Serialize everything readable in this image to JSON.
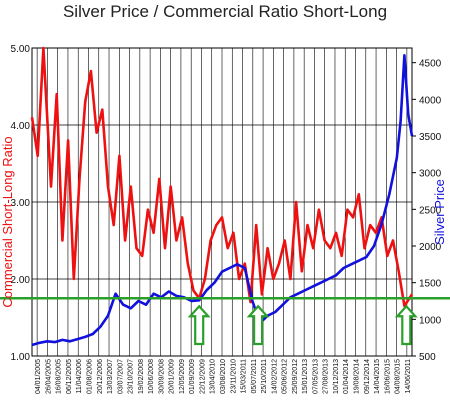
{
  "chart_data": {
    "type": "line",
    "title": "Silver Price / Commercial Ratio Short-Long",
    "y_left_label": "Commercial Short-Long Ratio",
    "y_right_label": "Silver Price",
    "y_left_range": [
      1.0,
      5.0
    ],
    "y_right_range": [
      500,
      4700
    ],
    "y_left_ticks": [
      "1.00",
      "2.00",
      "3.00",
      "4.00",
      "5.00"
    ],
    "y_right_ticks": [
      "500",
      "1000",
      "1500",
      "2000",
      "2500",
      "3000",
      "3500",
      "4000",
      "4500"
    ],
    "x_tick_labels": [
      "04/01/2005",
      "26/04/2005",
      "16/08/2005",
      "06/12/2005",
      "11/04/2006",
      "01/08/2006",
      "20/12/2006",
      "13/03/2007",
      "03/07/2007",
      "23/10/2007",
      "19/02/2008",
      "10/06/2008",
      "30/09/2008",
      "20/01/2009",
      "12/05/2009",
      "01/09/2009",
      "22/12/2009",
      "13/04/2010",
      "03/08/2010",
      "23/11/2010",
      "15/03/2011",
      "05/07/2011",
      "25/10/2011",
      "14/02/2012",
      "05/06/2012",
      "25/09/2012",
      "15/01/2013",
      "07/05/2013",
      "27/08/2013",
      "10/12/2013",
      "01/04/2014",
      "19/08/2014",
      "09/12/2014",
      "14/04/2015",
      "16/06/2015",
      "04/08/2015",
      "14/06/2011"
    ],
    "grid": true,
    "reference_line": {
      "axis": "left",
      "value": 1.75,
      "color": "#2aa02a"
    },
    "annotations": [
      {
        "type": "up-arrow",
        "x_fraction": 0.44,
        "color": "#2aa02a"
      },
      {
        "type": "up-arrow",
        "x_fraction": 0.595,
        "color": "#2aa02a"
      },
      {
        "type": "up-arrow",
        "x_fraction": 0.985,
        "color": "#2aa02a"
      }
    ],
    "series": [
      {
        "axis": "left",
        "color": "#ee1111",
        "x_fractions": [
          0.0,
          0.015,
          0.03,
          0.05,
          0.065,
          0.08,
          0.095,
          0.11,
          0.125,
          0.14,
          0.155,
          0.17,
          0.185,
          0.2,
          0.215,
          0.23,
          0.245,
          0.26,
          0.275,
          0.29,
          0.305,
          0.32,
          0.335,
          0.35,
          0.365,
          0.38,
          0.395,
          0.41,
          0.425,
          0.44,
          0.455,
          0.47,
          0.485,
          0.5,
          0.515,
          0.53,
          0.545,
          0.56,
          0.575,
          0.59,
          0.605,
          0.62,
          0.635,
          0.65,
          0.665,
          0.68,
          0.695,
          0.71,
          0.725,
          0.74,
          0.755,
          0.77,
          0.785,
          0.8,
          0.815,
          0.83,
          0.845,
          0.86,
          0.875,
          0.89,
          0.905,
          0.92,
          0.935,
          0.95,
          0.965,
          0.98,
          1.0
        ],
        "values": [
          4.1,
          3.6,
          5.0,
          3.2,
          4.4,
          2.5,
          3.8,
          2.0,
          3.3,
          4.3,
          4.7,
          3.9,
          4.2,
          3.2,
          2.7,
          3.6,
          2.5,
          3.2,
          2.4,
          2.3,
          2.9,
          2.6,
          3.3,
          2.4,
          3.2,
          2.5,
          2.8,
          2.2,
          1.85,
          1.75,
          2.0,
          2.5,
          2.7,
          2.8,
          2.4,
          2.6,
          2.0,
          2.2,
          1.7,
          2.7,
          1.8,
          2.4,
          2.0,
          2.2,
          2.5,
          2.0,
          3.0,
          2.1,
          2.7,
          2.4,
          2.9,
          2.5,
          2.4,
          2.6,
          2.3,
          2.9,
          2.8,
          3.1,
          2.4,
          2.7,
          2.6,
          2.8,
          2.3,
          2.5,
          2.1,
          1.65,
          1.8
        ]
      },
      {
        "axis": "right",
        "color": "#1111dd",
        "x_fractions": [
          0.0,
          0.02,
          0.04,
          0.06,
          0.08,
          0.1,
          0.12,
          0.14,
          0.16,
          0.18,
          0.2,
          0.22,
          0.24,
          0.26,
          0.28,
          0.3,
          0.32,
          0.34,
          0.36,
          0.38,
          0.4,
          0.42,
          0.44,
          0.46,
          0.48,
          0.5,
          0.52,
          0.54,
          0.56,
          0.58,
          0.6,
          0.62,
          0.64,
          0.66,
          0.68,
          0.7,
          0.72,
          0.74,
          0.76,
          0.78,
          0.8,
          0.82,
          0.84,
          0.86,
          0.88,
          0.9,
          0.92,
          0.94,
          0.96,
          0.97,
          0.98,
          0.99,
          1.0
        ],
        "values": [
          650,
          680,
          700,
          690,
          720,
          700,
          730,
          760,
          800,
          900,
          1050,
          1350,
          1200,
          1150,
          1250,
          1200,
          1350,
          1300,
          1380,
          1320,
          1300,
          1250,
          1260,
          1400,
          1500,
          1650,
          1700,
          1750,
          1700,
          1250,
          950,
          1050,
          1100,
          1200,
          1300,
          1350,
          1400,
          1450,
          1500,
          1550,
          1600,
          1700,
          1750,
          1800,
          1850,
          2000,
          2300,
          2700,
          3200,
          3700,
          4600,
          3800,
          3500
        ]
      }
    ]
  }
}
